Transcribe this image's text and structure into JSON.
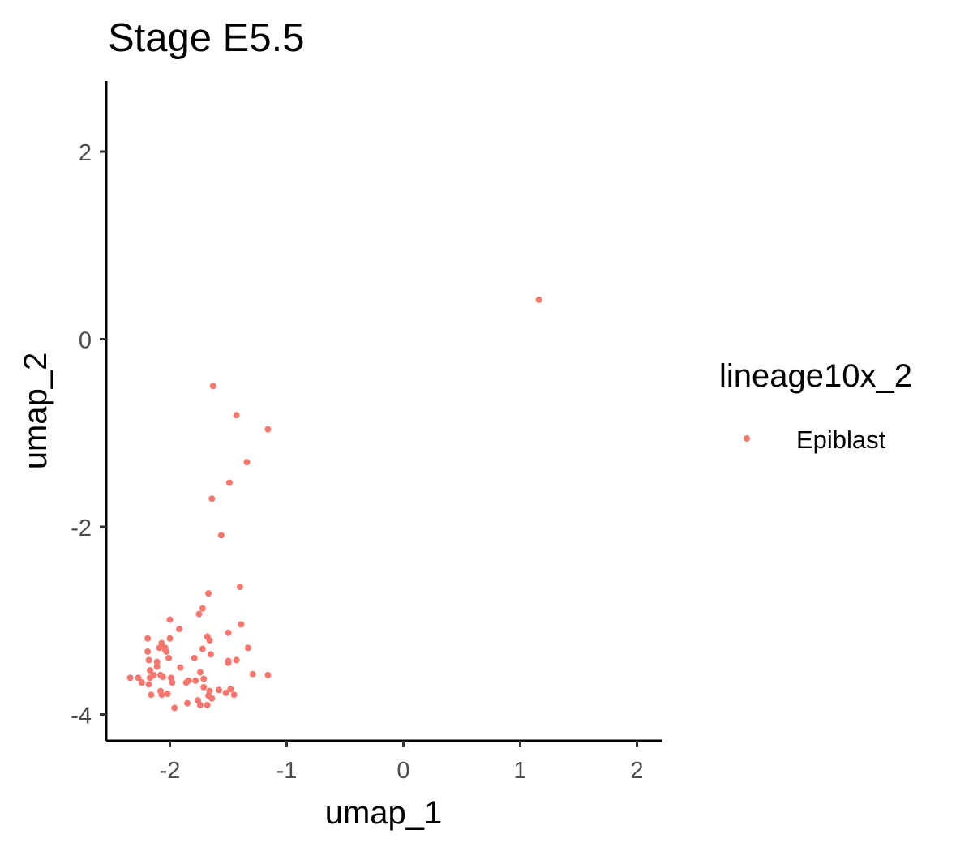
{
  "chart_data": {
    "type": "scatter",
    "title": "Stage E5.5",
    "xlabel": "umap_1",
    "ylabel": "umap_2",
    "xlim": [
      -2.55,
      2.2
    ],
    "ylim": [
      -4.28,
      2.75
    ],
    "xticks": [
      -2,
      -1,
      0,
      1,
      2
    ],
    "xtick_labels": [
      "-2",
      "-1",
      "0",
      "1",
      "2"
    ],
    "yticks": [
      -4,
      -2,
      0,
      2
    ],
    "ytick_labels": [
      "-4",
      "-2",
      "0",
      "2"
    ],
    "grid": false,
    "legend": {
      "title": "lineage10x_2",
      "placement": "right"
    },
    "series": [
      {
        "name": "Epiblast",
        "color": "#F8766D",
        "x": [
          1.16,
          -1.63,
          -1.43,
          -1.16,
          -1.34,
          -1.49,
          -1.64,
          -1.56,
          -1.4,
          -1.67,
          -1.72,
          -2.0,
          -1.75,
          -2.19,
          -1.39,
          -1.92,
          -1.68,
          -1.5,
          -2.07,
          -2.0,
          -1.66,
          -2.04,
          -1.72,
          -2.09,
          -2.03,
          -1.33,
          -2.19,
          -2.04,
          -2.11,
          -1.65,
          -2.18,
          -2.11,
          -1.5,
          -2.01,
          -1.79,
          -1.43,
          -1.5,
          -2.17,
          -1.91,
          -1.74,
          -2.14,
          -2.08,
          -1.99,
          -2.06,
          -2.17,
          -1.71,
          -1.84,
          -2.34,
          -1.16,
          -1.29,
          -2.27,
          -1.78,
          -2.24,
          -1.98,
          -1.86,
          -2.18,
          -1.58,
          -1.71,
          -2.08,
          -1.48,
          -1.66,
          -2.16,
          -2.02,
          -2.07,
          -1.67,
          -1.52,
          -1.45,
          -1.64,
          -1.76,
          -1.85,
          -1.74,
          -1.96,
          -1.68
        ],
        "y": [
          0.42,
          -0.5,
          -0.81,
          -0.96,
          -1.31,
          -1.53,
          -1.7,
          -2.09,
          -2.64,
          -2.71,
          -2.87,
          -2.99,
          -2.93,
          -3.19,
          -3.04,
          -3.09,
          -3.17,
          -3.13,
          -3.24,
          -3.19,
          -3.21,
          -3.29,
          -3.3,
          -3.29,
          -3.33,
          -3.29,
          -3.33,
          -3.31,
          -3.44,
          -3.36,
          -3.42,
          -3.49,
          -3.43,
          -3.4,
          -3.4,
          -3.42,
          -3.45,
          -3.53,
          -3.5,
          -3.55,
          -3.58,
          -3.58,
          -3.61,
          -3.6,
          -3.61,
          -3.62,
          -3.64,
          -3.61,
          -3.58,
          -3.57,
          -3.61,
          -3.64,
          -3.66,
          -3.66,
          -3.66,
          -3.68,
          -3.74,
          -3.71,
          -3.75,
          -3.73,
          -3.75,
          -3.79,
          -3.78,
          -3.79,
          -3.8,
          -3.77,
          -3.79,
          -3.83,
          -3.85,
          -3.88,
          -3.9,
          -3.93,
          -3.9
        ]
      }
    ]
  }
}
